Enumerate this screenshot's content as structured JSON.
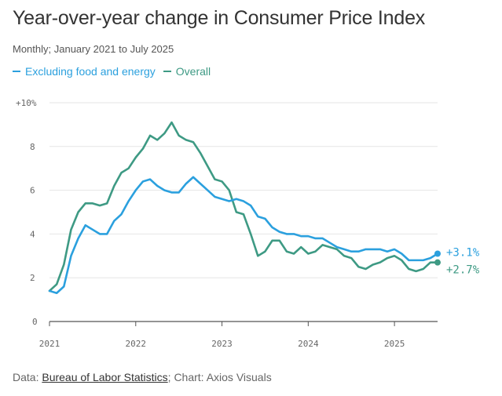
{
  "title": "Year-over-year change in Consumer Price Index",
  "subtitle": "Monthly; January 2021 to July 2025",
  "source": {
    "prefix": "Data: ",
    "link_text": "Bureau of Labor Statistics",
    "suffix": "; Chart: Axios Visuals"
  },
  "colors": {
    "core": "#2ba0de",
    "overall": "#3e9a84",
    "grid": "#e6e6e6",
    "axis": "#555555"
  },
  "chart_data": {
    "type": "line",
    "title": "Year-over-year change in Consumer Price Index",
    "xlabel": "",
    "ylabel": "",
    "x_tick_labels": [
      "2021",
      "2022",
      "2023",
      "2024",
      "2025"
    ],
    "y_tick_labels": [
      "+10%",
      "8",
      "6",
      "4",
      "2",
      "0"
    ],
    "y_ticks": [
      10,
      8,
      6,
      4,
      2,
      0
    ],
    "ylim": [
      0,
      10
    ],
    "grid": true,
    "legend_position": "top-left",
    "x": [
      "2021-01",
      "2021-02",
      "2021-03",
      "2021-04",
      "2021-05",
      "2021-06",
      "2021-07",
      "2021-08",
      "2021-09",
      "2021-10",
      "2021-11",
      "2021-12",
      "2022-01",
      "2022-02",
      "2022-03",
      "2022-04",
      "2022-05",
      "2022-06",
      "2022-07",
      "2022-08",
      "2022-09",
      "2022-10",
      "2022-11",
      "2022-12",
      "2023-01",
      "2023-02",
      "2023-03",
      "2023-04",
      "2023-05",
      "2023-06",
      "2023-07",
      "2023-08",
      "2023-09",
      "2023-10",
      "2023-11",
      "2023-12",
      "2024-01",
      "2024-02",
      "2024-03",
      "2024-04",
      "2024-05",
      "2024-06",
      "2024-07",
      "2024-08",
      "2024-09",
      "2024-10",
      "2024-11",
      "2024-12",
      "2025-01",
      "2025-02",
      "2025-03",
      "2025-04",
      "2025-05",
      "2025-06",
      "2025-07"
    ],
    "series": [
      {
        "name": "Excluding food and energy",
        "color": "#2ba0de",
        "end_label": "+3.1%",
        "values": [
          1.4,
          1.3,
          1.6,
          3.0,
          3.8,
          4.4,
          4.2,
          4.0,
          4.0,
          4.6,
          4.9,
          5.5,
          6.0,
          6.4,
          6.5,
          6.2,
          6.0,
          5.9,
          5.9,
          6.3,
          6.6,
          6.3,
          6.0,
          5.7,
          5.6,
          5.5,
          5.6,
          5.5,
          5.3,
          4.8,
          4.7,
          4.3,
          4.1,
          4.0,
          4.0,
          3.9,
          3.9,
          3.8,
          3.8,
          3.6,
          3.4,
          3.3,
          3.2,
          3.2,
          3.3,
          3.3,
          3.3,
          3.2,
          3.3,
          3.1,
          2.8,
          2.8,
          2.8,
          2.9,
          3.1
        ]
      },
      {
        "name": "Overall",
        "color": "#3e9a84",
        "end_label": "+2.7%",
        "values": [
          1.4,
          1.7,
          2.6,
          4.2,
          5.0,
          5.4,
          5.4,
          5.3,
          5.4,
          6.2,
          6.8,
          7.0,
          7.5,
          7.9,
          8.5,
          8.3,
          8.6,
          9.1,
          8.5,
          8.3,
          8.2,
          7.7,
          7.1,
          6.5,
          6.4,
          6.0,
          5.0,
          4.9,
          4.0,
          3.0,
          3.2,
          3.7,
          3.7,
          3.2,
          3.1,
          3.4,
          3.1,
          3.2,
          3.5,
          3.4,
          3.3,
          3.0,
          2.9,
          2.5,
          2.4,
          2.6,
          2.7,
          2.9,
          3.0,
          2.8,
          2.4,
          2.3,
          2.4,
          2.7,
          2.7
        ]
      }
    ]
  }
}
